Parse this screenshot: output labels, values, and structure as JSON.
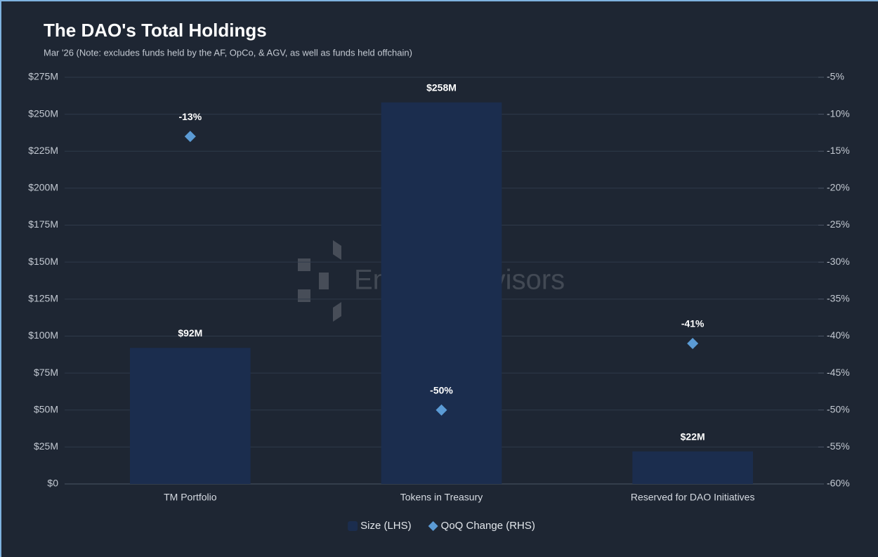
{
  "chart_data": {
    "type": "bar",
    "title": "The DAO's Total Holdings",
    "subtitle": "Mar '26 (Note: excludes funds held by the AF, OpCo, & AGV, as well as funds held offchain)",
    "watermark": "Entropy Advisors",
    "categories": [
      "TM Portfolio",
      "Tokens in Treasury",
      "Reserved for DAO Initiatives"
    ],
    "series": [
      {
        "name": "Size (LHS)",
        "type": "bar",
        "color": "#1b2d4e",
        "values": [
          92,
          258,
          22
        ],
        "value_labels": [
          "$92M",
          "$258M",
          "$22M"
        ]
      },
      {
        "name": "QoQ Change (RHS)",
        "type": "scatter",
        "axis": "y2",
        "color": "#5b9bd5",
        "values": [
          -13,
          -50,
          -41
        ],
        "value_labels": [
          "-13%",
          "-50%",
          "-41%"
        ]
      }
    ],
    "ylim": [
      0,
      275
    ],
    "yticks": [
      {
        "value": 0,
        "label": "$0"
      },
      {
        "value": 25,
        "label": "$25M"
      },
      {
        "value": 50,
        "label": "$50M"
      },
      {
        "value": 75,
        "label": "$75M"
      },
      {
        "value": 100,
        "label": "$100M"
      },
      {
        "value": 125,
        "label": "$125M"
      },
      {
        "value": 150,
        "label": "$150M"
      },
      {
        "value": 175,
        "label": "$175M"
      },
      {
        "value": 200,
        "label": "$200M"
      },
      {
        "value": 225,
        "label": "$225M"
      },
      {
        "value": 250,
        "label": "$250M"
      },
      {
        "value": 275,
        "label": "$275M"
      }
    ],
    "y2lim": [
      -60,
      -5
    ],
    "y2ticks": [
      {
        "value": -60,
        "label": "-60%"
      },
      {
        "value": -55,
        "label": "-55%"
      },
      {
        "value": -50,
        "label": "-50%"
      },
      {
        "value": -45,
        "label": "-45%"
      },
      {
        "value": -40,
        "label": "-40%"
      },
      {
        "value": -35,
        "label": "-35%"
      },
      {
        "value": -30,
        "label": "-30%"
      },
      {
        "value": -25,
        "label": "-25%"
      },
      {
        "value": -20,
        "label": "-20%"
      },
      {
        "value": -15,
        "label": "-15%"
      },
      {
        "value": -10,
        "label": "-10%"
      },
      {
        "value": -5,
        "label": "-5%"
      }
    ],
    "grid": true,
    "legend": "bottom"
  }
}
